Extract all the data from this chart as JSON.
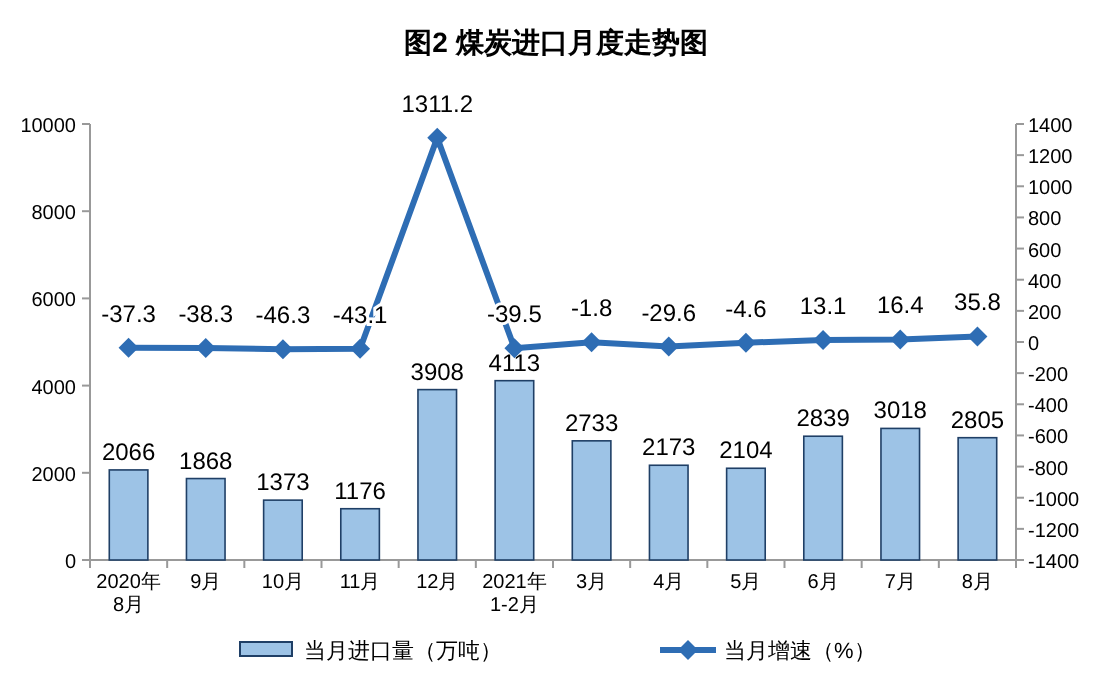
{
  "chart_data": {
    "type": "bar",
    "title": "图2 煤炭进口月度走势图",
    "categories": [
      "2020年\n8月",
      "9月",
      "10月",
      "11月",
      "12月",
      "2021年\n1-2月",
      "3月",
      "4月",
      "5月",
      "6月",
      "7月",
      "8月"
    ],
    "series": [
      {
        "name": "当月进口量（万吨）",
        "color": "#9dc3e6",
        "values": [
          2066,
          1868,
          1373,
          1176,
          3908,
          4113,
          2733,
          2173,
          2104,
          2839,
          3018,
          2805
        ]
      },
      {
        "name": "当月增速（%）",
        "type": "line",
        "axis": "y2",
        "color": "#2e6db4",
        "marker": "diamond",
        "values": [
          -37.3,
          -38.3,
          -46.3,
          -43.1,
          1311.2,
          -39.5,
          -1.8,
          -29.6,
          -4.6,
          13.1,
          16.4,
          35.8
        ]
      }
    ],
    "data_labels": true,
    "ylim": [
      0,
      10000
    ],
    "yticks": [
      0,
      2000,
      4000,
      6000,
      8000,
      10000
    ],
    "y2lim": [
      -1400,
      1400
    ],
    "y2ticks": [
      -1400,
      -1200,
      -1000,
      -800,
      -600,
      -400,
      -200,
      0,
      200,
      400,
      600,
      800,
      1000,
      1200,
      1400
    ],
    "grid": false,
    "legend": "bottom"
  }
}
